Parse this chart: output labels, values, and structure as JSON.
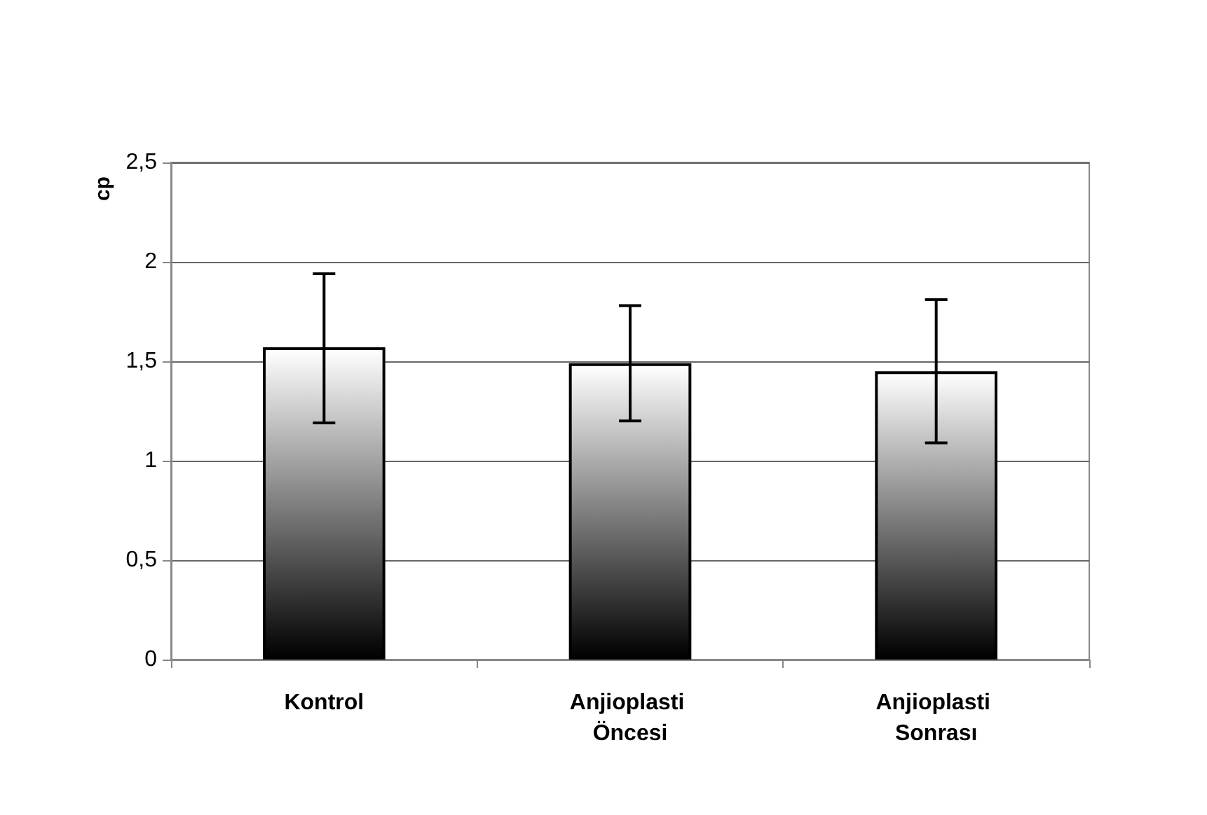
{
  "chart_data": {
    "type": "bar",
    "ylabel": "cp",
    "categories": [
      "Kontrol",
      "Anjioplasti Öncesi",
      "Anjioplasti Sonrası"
    ],
    "values": [
      1.57,
      1.49,
      1.45
    ],
    "color": "#000000",
    "errors": [
      [
        1.19,
        1.94
      ],
      [
        1.2,
        1.78
      ],
      [
        1.09,
        1.81
      ]
    ],
    "ylim": [
      0,
      2.5
    ],
    "yticks": [
      {
        "value": 0,
        "label": "0"
      },
      {
        "value": 0.5,
        "label": "0,5"
      },
      {
        "value": 1,
        "label": "1"
      },
      {
        "value": 1.5,
        "label": "1,5"
      },
      {
        "value": 2,
        "label": "2"
      },
      {
        "value": 2.5,
        "label": "2,5"
      }
    ],
    "grid": "y"
  }
}
